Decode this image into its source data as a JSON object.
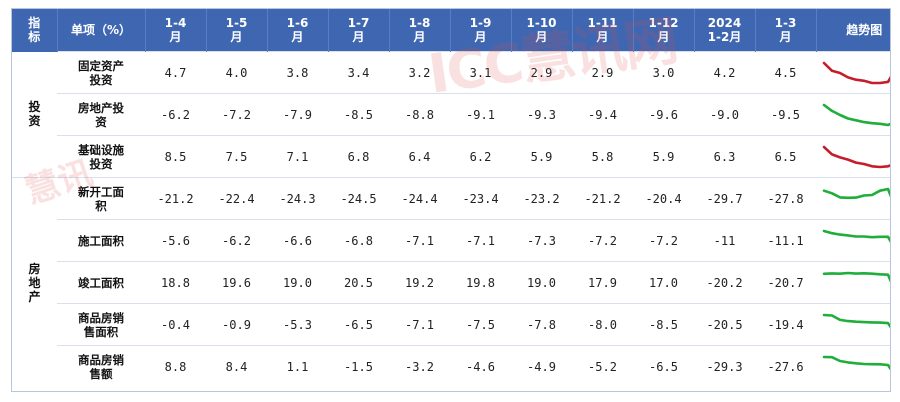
{
  "header": {
    "indicator": "指\n标",
    "item": "单项（%）",
    "months": [
      "1-4\n月",
      "1-5\n月",
      "1-6\n月",
      "1-7\n月",
      "1-8\n月",
      "1-9\n月",
      "1-10\n月",
      "1-11\n月",
      "1-12\n月",
      "2024\n1-2月",
      "1-3\n月"
    ],
    "trend": "趋势图"
  },
  "categories": [
    {
      "label": "投\n资",
      "rows": 3
    },
    {
      "label": "房\n地\n产",
      "rows": 5
    }
  ],
  "rows": [
    {
      "item": "固定资产\n投资",
      "values": [
        "4.7",
        "4.0",
        "3.8",
        "3.4",
        "3.2",
        "3.1",
        "2.9",
        "2.9",
        "3.0",
        "4.2",
        "4.5"
      ],
      "trend_color": "#c41e2a"
    },
    {
      "item": "房地产投\n资",
      "values": [
        "-6.2",
        "-7.2",
        "-7.9",
        "-8.5",
        "-8.8",
        "-9.1",
        "-9.3",
        "-9.4",
        "-9.6",
        "-9.0",
        "-9.5"
      ],
      "trend_color": "#1fae3a"
    },
    {
      "item": "基础设施\n投资",
      "values": [
        "8.5",
        "7.5",
        "7.1",
        "6.8",
        "6.4",
        "6.2",
        "5.9",
        "5.8",
        "5.9",
        "6.3",
        "6.5"
      ],
      "trend_color": "#c41e2a"
    },
    {
      "item": "新开工面\n积",
      "values": [
        "-21.2",
        "-22.4",
        "-24.3",
        "-24.5",
        "-24.4",
        "-23.4",
        "-23.2",
        "-21.2",
        "-20.4",
        "-29.7",
        "-27.8"
      ],
      "trend_color": "#1fae3a"
    },
    {
      "item": "施工面积",
      "values": [
        "-5.6",
        "-6.2",
        "-6.6",
        "-6.8",
        "-7.1",
        "-7.1",
        "-7.3",
        "-7.2",
        "-7.2",
        "-11",
        "-11.1"
      ],
      "trend_color": "#1fae3a"
    },
    {
      "item": "竣工面积",
      "values": [
        "18.8",
        "19.6",
        "19.0",
        "20.5",
        "19.2",
        "19.8",
        "19.0",
        "17.9",
        "17.0",
        "-20.2",
        "-20.7"
      ],
      "trend_color": "#1fae3a"
    },
    {
      "item": "商品房销\n售面积",
      "values": [
        "-0.4",
        "-0.9",
        "-5.3",
        "-6.5",
        "-7.1",
        "-7.5",
        "-7.8",
        "-8.0",
        "-8.5",
        "-20.5",
        "-19.4"
      ],
      "trend_color": "#1fae3a"
    },
    {
      "item": "商品房销\n售额",
      "values": [
        "8.8",
        "8.4",
        "1.1",
        "-1.5",
        "-3.2",
        "-4.6",
        "-4.9",
        "-5.2",
        "-6.5",
        "-29.3",
        "-27.6"
      ],
      "trend_color": "#1fae3a"
    }
  ],
  "watermark": {
    "text_main": "ICC慧讯网",
    "text_side": "慧讯"
  },
  "colors": {
    "header_bg": "#3f67b1",
    "up_trend": "#c41e2a",
    "down_trend": "#1fae3a"
  }
}
